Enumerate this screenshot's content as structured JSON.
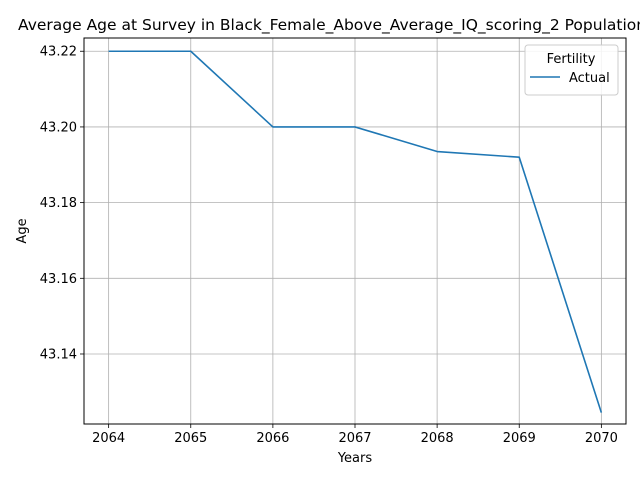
{
  "chart_data": {
    "type": "line",
    "title": "Average Age at Survey in Black_Female_Above_Average_IQ_scoring_2 Population",
    "xlabel": "Years",
    "ylabel": "Age",
    "x": [
      2064,
      2065,
      2066,
      2067,
      2068,
      2069,
      2070
    ],
    "x_ticks": [
      "2064",
      "2065",
      "2066",
      "2067",
      "2068",
      "2069",
      "2070"
    ],
    "y_ticks": [
      "43.14",
      "43.16",
      "43.18",
      "43.20",
      "43.22"
    ],
    "y_tick_values": [
      43.14,
      43.16,
      43.18,
      43.2,
      43.22
    ],
    "xlim": [
      2063.7,
      2070.3
    ],
    "ylim": [
      43.1215,
      43.2235
    ],
    "grid": true,
    "legend": {
      "title": "Fertility",
      "position": "top-right"
    },
    "series": [
      {
        "name": "Actual",
        "color": "#1f77b4",
        "values": [
          43.22,
          43.22,
          43.2,
          43.2,
          43.1935,
          43.192,
          43.1245
        ]
      }
    ]
  }
}
